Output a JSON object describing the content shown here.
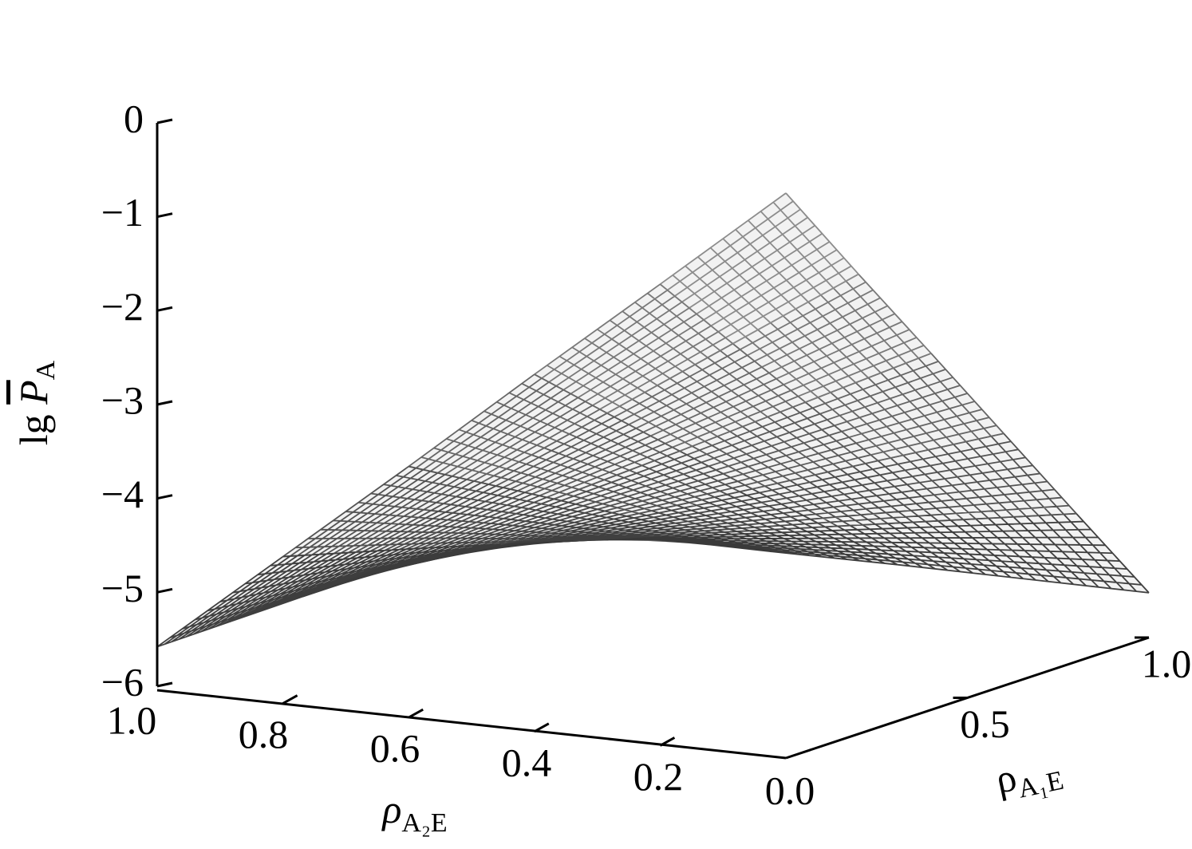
{
  "chart_data": {
    "type": "surface3d",
    "zlabel": {
      "prefix": "lg",
      "symbol": "P",
      "subscript": "A"
    },
    "xlabel": {
      "symbol": "ρ",
      "subscript": "A₂E"
    },
    "ylabel": {
      "symbol": "ρ",
      "subscript": "A₁E"
    },
    "x": [
      1.0,
      0.8,
      0.6,
      0.4,
      0.2,
      0.0
    ],
    "y": [
      0.0,
      0.2,
      0.4,
      0.6,
      0.8,
      1.0
    ],
    "z": [
      [
        -5.58,
        -4.47,
        -3.36,
        -2.23,
        -1.12,
        0.0
      ],
      [
        -5.57,
        -4.68,
        -3.79,
        -2.9,
        -2.01,
        -1.12
      ],
      [
        -5.56,
        -4.89,
        -4.22,
        -3.56,
        -2.89,
        -2.22
      ],
      [
        -5.56,
        -5.11,
        -4.66,
        -4.22,
        -3.77,
        -3.33
      ],
      [
        -5.55,
        -5.33,
        -5.1,
        -4.88,
        -4.66,
        -4.44
      ],
      [
        -5.55,
        -5.55,
        -5.55,
        -5.54,
        -5.54,
        -5.54
      ]
    ],
    "xlim": [
      1.0,
      0.0
    ],
    "xticks": [
      {
        "value": 1.0,
        "label": "1.0"
      },
      {
        "value": 0.8,
        "label": "0.8"
      },
      {
        "value": 0.6,
        "label": "0.6"
      },
      {
        "value": 0.4,
        "label": "0.4"
      },
      {
        "value": 0.2,
        "label": "0.2"
      },
      {
        "value": 0.0,
        "label": "0.0"
      }
    ],
    "ylim": [
      0.0,
      1.0
    ],
    "yticks": [
      {
        "value": 0.5,
        "label": "0.5"
      },
      {
        "value": 1.0,
        "label": "1.0"
      }
    ],
    "zlim": [
      -6,
      0
    ],
    "zticks": [
      0,
      {
        "value": -1,
        "label": "−1"
      },
      {
        "value": -2,
        "label": "−2"
      },
      {
        "value": -3,
        "label": "−3"
      },
      {
        "value": -4,
        "label": "−4"
      },
      {
        "value": -5,
        "label": "−5"
      },
      {
        "value": -6,
        "label": "−6"
      }
    ],
    "colorscale": [
      "#2e2e2e",
      "#a0a0a0"
    ]
  }
}
